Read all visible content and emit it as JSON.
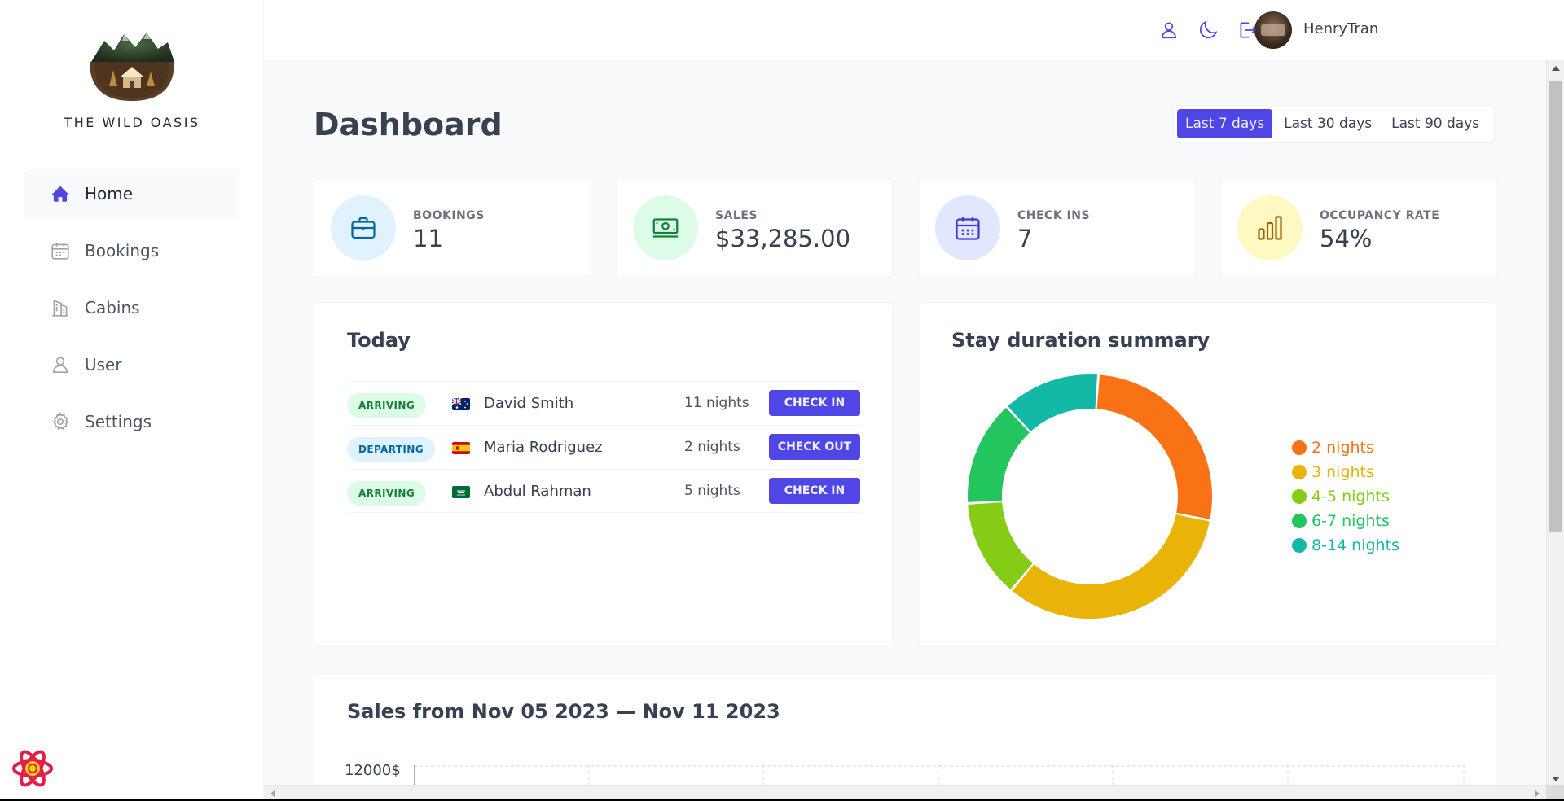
{
  "brand": {
    "name": "THE WILD OASIS"
  },
  "sidebar": {
    "items": [
      {
        "label": "Home",
        "icon": "home-icon",
        "active": true
      },
      {
        "label": "Bookings",
        "icon": "calendar-icon",
        "active": false
      },
      {
        "label": "Cabins",
        "icon": "building-icon",
        "active": false
      },
      {
        "label": "User",
        "icon": "user-icon",
        "active": false
      },
      {
        "label": "Settings",
        "icon": "gear-icon",
        "active": false
      }
    ]
  },
  "header": {
    "username": "HenryTran",
    "icons": [
      "user-icon",
      "moon-icon",
      "logout-icon"
    ]
  },
  "page": {
    "title": "Dashboard",
    "filters": [
      "Last 7 days",
      "Last 30 days",
      "Last 90 days"
    ],
    "active_filter": "Last 7 days"
  },
  "stats": [
    {
      "label": "BOOKINGS",
      "value": "11",
      "icon": "briefcase-icon",
      "bg": "#e0f2fe",
      "fg": "#0369a1"
    },
    {
      "label": "SALES",
      "value": "$33,285.00",
      "icon": "banknotes-icon",
      "bg": "#dcfce7",
      "fg": "#15803d"
    },
    {
      "label": "CHECK INS",
      "value": "7",
      "icon": "calendar-days-icon",
      "bg": "#e0e7ff",
      "fg": "#4338ca"
    },
    {
      "label": "OCCUPANCY RATE",
      "value": "54%",
      "icon": "chart-bar-icon",
      "bg": "#fef9c3",
      "fg": "#a16207"
    }
  ],
  "today": {
    "title": "Today",
    "rows": [
      {
        "status": "ARRIVING",
        "country": "Australia",
        "guest": "David Smith",
        "nights": "11 nights",
        "action": "CHECK IN"
      },
      {
        "status": "DEPARTING",
        "country": "Spain",
        "guest": "Maria Rodriguez",
        "nights": "2 nights",
        "action": "CHECK OUT"
      },
      {
        "status": "ARRIVING",
        "country": "Saudi Arabia",
        "guest": "Abdul Rahman",
        "nights": "5 nights",
        "action": "CHECK IN"
      }
    ]
  },
  "stay_summary": {
    "title": "Stay duration summary"
  },
  "chart_data": {
    "type": "pie",
    "title": "Stay duration summary",
    "categories": [
      "2 nights",
      "3 nights",
      "4-5 nights",
      "6-7 nights",
      "8-14 nights"
    ],
    "values": [
      27,
      33,
      13,
      14,
      13
    ],
    "colors": [
      "#f97316",
      "#eab308",
      "#84cc16",
      "#22c55e",
      "#14b8a6"
    ],
    "legend": "right"
  },
  "sales": {
    "title": "Sales from Nov 05 2023 — Nov 11 2023",
    "y_top_label": "12000$"
  }
}
